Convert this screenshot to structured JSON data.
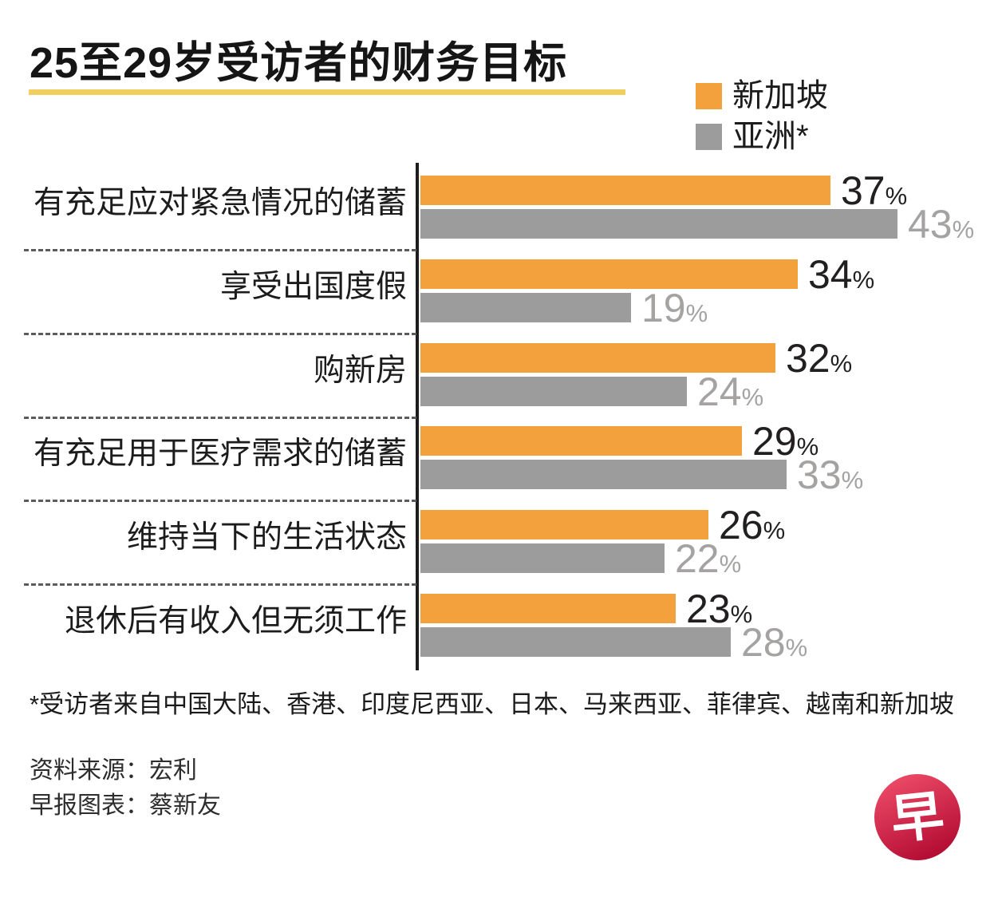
{
  "title": "25至29岁受访者的财务目标",
  "legend": [
    {
      "label": "新加坡",
      "color": "#F2A13C"
    },
    {
      "label": "亚洲*",
      "color": "#9C9C9C"
    }
  ],
  "chart_data": {
    "type": "bar",
    "orientation": "horizontal",
    "unit": "%",
    "categories": [
      "有充足应对紧急情况的储蓄",
      "享受出国度假",
      "购新房",
      "有充足用于医疗需求的储蓄",
      "维持当下的生活状态",
      "退休后有收入但无须工作"
    ],
    "series": [
      {
        "name": "新加坡",
        "color": "#F2A13C",
        "values": [
          37,
          34,
          32,
          29,
          26,
          23
        ]
      },
      {
        "name": "亚洲*",
        "color": "#9C9C9C",
        "values": [
          43,
          19,
          24,
          33,
          22,
          28
        ]
      }
    ],
    "xlim": [
      0,
      43
    ],
    "value_labels": true,
    "grid": false,
    "legend_position": "top-right"
  },
  "footnote": "*受访者来自中国大陆、香港、印度尼西亚、日本、马来西亚、菲律宾、越南和新加坡",
  "source": {
    "line1": "资料来源：宏利",
    "line2": "早报图表：蔡新友"
  },
  "logo": {
    "glyph": "早",
    "color_top": "#E84663",
    "color_bottom": "#B50E35"
  },
  "colors": {
    "title_underline": "#F0CF60",
    "singapore_bar": "#F2A13C",
    "asia_bar": "#9C9C9C",
    "value_text_dark": "#221F20",
    "value_text_gray": "#A5A3A2",
    "axis_line": "#1D1D1D",
    "separator": "#5C5C5C"
  }
}
